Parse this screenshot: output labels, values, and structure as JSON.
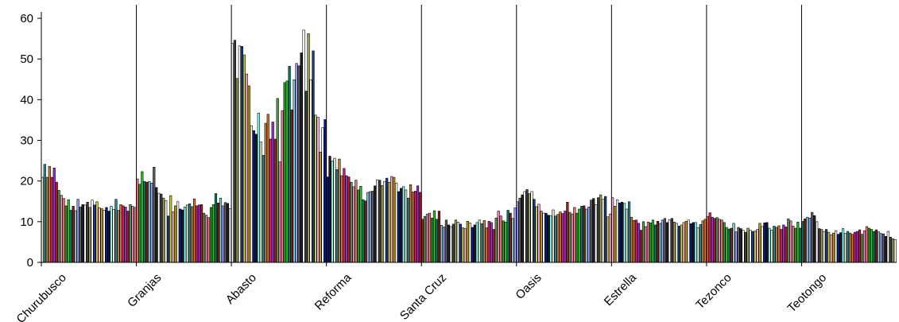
{
  "chart_data": {
    "type": "bar",
    "title": "",
    "xlabel": "",
    "ylabel": "",
    "ylim": [
      0,
      60
    ],
    "yticks": [
      "0",
      "10",
      "20",
      "30",
      "40",
      "50",
      "60"
    ],
    "grid": false,
    "groups": [
      {
        "name": "Churubusco",
        "values": [
          20.9,
          24.1,
          20.9,
          23.6,
          20.9,
          23.2,
          19.7,
          17.7,
          16.5,
          15.7,
          13.9,
          15.4,
          12.8,
          13.8,
          12.7,
          15.5,
          13.6,
          14.2,
          14.1,
          14.8,
          13.5,
          15.3,
          14.1,
          14.9,
          13.4,
          13.2,
          12.8,
          13.5,
          12.6,
          13.8,
          13.0,
          15.5,
          12.8,
          14.2,
          13.9,
          13.6,
          12.6,
          14.2,
          13.8,
          13.5
        ]
      },
      {
        "name": "Granjas",
        "values": [
          20.5,
          19.2,
          22.3,
          19.9,
          19.7,
          19.9,
          19.5,
          23.4,
          18.4,
          17.0,
          16.8,
          15.8,
          15.2,
          11.4,
          16.4,
          12.4,
          13.9,
          14.9,
          13.1,
          12.9,
          13.6,
          14.1,
          14.4,
          13.7,
          15.6,
          13.9,
          14.1,
          14.2,
          12.1,
          11.6,
          11.0,
          13.5,
          14.2,
          16.9,
          14.6,
          15.8,
          13.9,
          14.7,
          14.5,
          13.2
        ]
      },
      {
        "name": "Abasto",
        "values": [
          53.8,
          54.6,
          45.2,
          53.2,
          53.1,
          51.0,
          46.3,
          43.4,
          33.6,
          32.4,
          31.5,
          36.7,
          29.6,
          26.3,
          34.2,
          36.4,
          30.3,
          34.5,
          30.3,
          40.3,
          24.7,
          37.3,
          44.2,
          44.6,
          48.2,
          37.5,
          44.9,
          48.9,
          48.3,
          51.5,
          57.1,
          42.1,
          56.2,
          44.9,
          52.0,
          36.2,
          35.7,
          27.1,
          33.1,
          35.1
        ]
      },
      {
        "name": "Reforma",
        "values": [
          21.0,
          26.1,
          24.9,
          25.6,
          22.8,
          25.4,
          21.3,
          23.1,
          21.3,
          21.0,
          19.7,
          18.6,
          20.2,
          17.8,
          18.7,
          15.4,
          15.1,
          17.2,
          17.4,
          17.5,
          18.8,
          20.3,
          20.2,
          18.9,
          19.9,
          20.7,
          19.7,
          21.1,
          20.9,
          19.5,
          17.4,
          18.2,
          18.6,
          17.8,
          15.8,
          19.1,
          17.3,
          17.5,
          18.8,
          17.2
        ]
      },
      {
        "name": "Santa Cruz",
        "values": [
          10.6,
          11.3,
          11.9,
          12.1,
          10.9,
          12.7,
          10.6,
          12.6,
          9.1,
          8.7,
          10.4,
          9.2,
          8.8,
          9.4,
          10.4,
          9.9,
          9.4,
          8.5,
          8.3,
          10.1,
          9.7,
          8.6,
          9.2,
          9.8,
          10.4,
          9.5,
          10.3,
          8.5,
          10.1,
          9.8,
          8.1,
          10.9,
          12.6,
          11.4,
          10.2,
          9.9,
          12.8,
          12.1,
          10.8,
          13.4
        ]
      },
      {
        "name": "Oasis",
        "values": [
          14.9,
          15.8,
          16.6,
          17.4,
          17.9,
          16.9,
          17.4,
          15.5,
          13.7,
          14.3,
          12.6,
          12.1,
          12.1,
          11.6,
          11.5,
          12.9,
          11.4,
          11.8,
          12.4,
          12.0,
          12.6,
          14.8,
          12.3,
          11.9,
          13.5,
          12.1,
          13.1,
          13.8,
          13.9,
          13.1,
          13.6,
          15.3,
          15.7,
          14.2,
          15.9,
          16.6,
          15.5,
          16.2,
          11.2,
          11.9
        ]
      },
      {
        "name": "Estrella",
        "values": [
          15.9,
          13.8,
          15.4,
          14.6,
          14.8,
          14.5,
          13.1,
          14.9,
          11.1,
          10.3,
          10.4,
          9.6,
          7.9,
          10.0,
          8.8,
          9.9,
          9.7,
          10.4,
          9.2,
          10.1,
          9.6,
          10.4,
          10.8,
          9.8,
          10.5,
          10.8,
          9.9,
          9.6,
          8.9,
          9.2,
          9.8,
          10.1,
          10.4,
          9.5,
          9.8,
          9.8,
          8.5,
          9.3,
          10.2,
          10.6
        ]
      },
      {
        "name": "Tezonco",
        "values": [
          11.3,
          12.2,
          11.1,
          10.8,
          11.0,
          10.6,
          10.4,
          9.8,
          8.6,
          8.2,
          8.4,
          9.6,
          7.5,
          8.6,
          8.3,
          7.9,
          7.4,
          8.4,
          7.9,
          7.6,
          7.7,
          8.1,
          9.6,
          8.8,
          9.7,
          9.8,
          8.4,
          7.9,
          8.9,
          8.6,
          9.0,
          8.1,
          9.2,
          8.7,
          10.7,
          10.2,
          8.9,
          8.4,
          9.9,
          8.4
        ]
      },
      {
        "name": "Teotongo",
        "values": [
          10.1,
          10.7,
          11.1,
          10.9,
          12.3,
          11.5,
          10.0,
          8.3,
          8.1,
          7.6,
          8.1,
          7.4,
          6.8,
          7.2,
          7.8,
          6.9,
          7.3,
          8.3,
          7.1,
          7.6,
          7.2,
          6.9,
          7.4,
          7.6,
          8.0,
          6.9,
          7.8,
          8.8,
          8.4,
          8.1,
          7.6,
          8.0,
          7.5,
          7.1,
          7.0,
          6.4,
          7.6,
          6.2,
          5.8,
          5.6
        ]
      }
    ]
  },
  "colors": {
    "axis": "#000000",
    "separator": "#000000",
    "bar_outline": "#000000",
    "palette": [
      "#f0e8c8",
      "#8b1a1a",
      "#ffffff",
      "#f08080",
      "#1a3a8c",
      "#9b30d0",
      "#ffffff",
      "#2a8a9a",
      "#7fd0d0",
      "#0a1a8a",
      "#20a020",
      "#d0d030",
      "#b02020",
      "#404040",
      "#c08040",
      "#a0a0ff",
      "#1a1a1a",
      "#30c030",
      "#ffb0e0",
      "#50a050",
      "#a0a050",
      "#e07030",
      "#606060",
      "#80ffff",
      "#008060",
      "#c0a000",
      "#ff80c0",
      "#ffffff",
      "#d02080",
      "#202020"
    ]
  }
}
